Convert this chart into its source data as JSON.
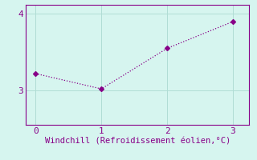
{
  "x": [
    0,
    1,
    2,
    3
  ],
  "y": [
    3.22,
    3.02,
    3.55,
    3.9
  ],
  "line_color": "#880088",
  "marker": "D",
  "marker_size": 3,
  "bg_color": "#d6f5ef",
  "xlabel": "Windchill (Refroidissement éolien,°C)",
  "xlabel_color": "#880088",
  "xlabel_fontsize": 7.5,
  "tick_color": "#880088",
  "tick_fontsize": 8,
  "xlim": [
    -0.15,
    3.25
  ],
  "ylim": [
    2.55,
    4.12
  ],
  "yticks": [
    3,
    4
  ],
  "xticks": [
    0,
    1,
    2,
    3
  ],
  "grid_color": "#b0ddd5",
  "spine_color": "#880088",
  "figsize": [
    3.2,
    2.0
  ],
  "dpi": 100
}
